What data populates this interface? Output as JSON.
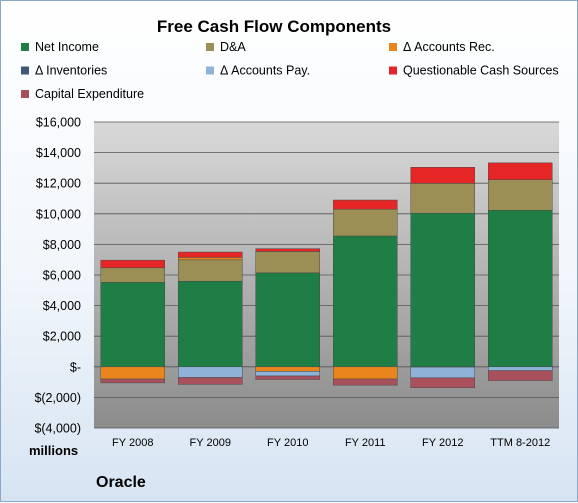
{
  "chart_data": {
    "type": "bar",
    "stacked": true,
    "title": "Free Cash Flow Components",
    "units_label": "millions",
    "company": "Oracle",
    "categories": [
      "FY 2008",
      "FY 2009",
      "FY 2010",
      "FY 2011",
      "FY 2012",
      "TTM 8-2012"
    ],
    "ylim": [
      -4000,
      16000
    ],
    "ytick_step": 2000,
    "ytick_labels": [
      "$(4,000)",
      "$(2,000)",
      "$-",
      "$2,000",
      "$4,000",
      "$6,000",
      "$8,000",
      "$10,000",
      "$12,000",
      "$14,000",
      "$16,000"
    ],
    "grid": true,
    "legend_position": "top",
    "series": [
      {
        "name": "Net Income",
        "color": "#1e7e45",
        "values": [
          5520,
          5590,
          6140,
          8550,
          10040,
          10230
        ]
      },
      {
        "name": "D&A",
        "color": "#9b8f56",
        "values": [
          950,
          1400,
          1400,
          1750,
          1950,
          2000
        ]
      },
      {
        "name": "Δ Accounts Rec.",
        "color": "#e9851c",
        "values": [
          -800,
          160,
          -300,
          -800,
          -20,
          0
        ]
      },
      {
        "name": "Δ Inventories",
        "color": "#3c5a78",
        "values": [
          0,
          0,
          0,
          0,
          0,
          0
        ]
      },
      {
        "name": "Δ Accounts Pay.",
        "color": "#8fb2d9",
        "values": [
          0,
          -700,
          -300,
          0,
          -700,
          -250
        ]
      },
      {
        "name": "Questionable Cash Sources",
        "color": "#e52526",
        "values": [
          500,
          350,
          180,
          600,
          1050,
          1100
        ]
      },
      {
        "name": "Capital Expenditure",
        "color": "#a8505c",
        "values": [
          -250,
          -450,
          -230,
          -400,
          -650,
          -650
        ]
      }
    ]
  }
}
